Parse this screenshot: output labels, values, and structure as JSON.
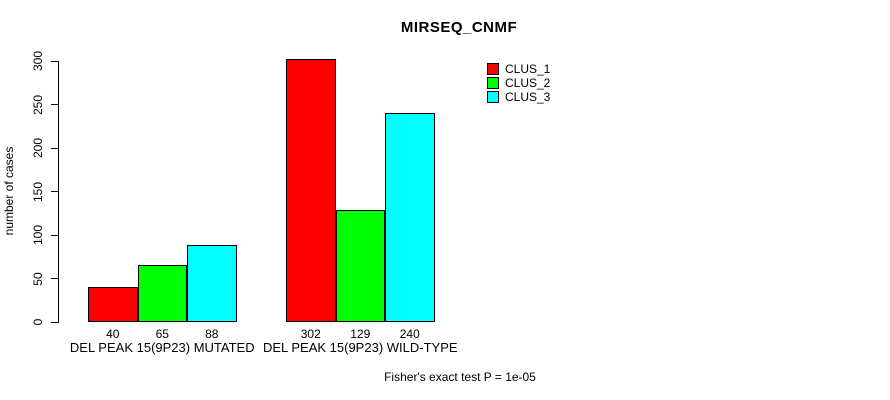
{
  "title": "MIRSEQ_CNMF",
  "footer": "Fisher's exact test P = 1e-05",
  "chart_data": {
    "type": "bar",
    "title": "MIRSEQ_CNMF",
    "xlabel": "",
    "ylabel": "number of cases",
    "ylim": [
      0,
      302
    ],
    "yticks": [
      0,
      50,
      100,
      150,
      200,
      250,
      300
    ],
    "grid": false,
    "legend_position": "top-right",
    "categories": [
      "DEL PEAK 15(9P23) MUTATED",
      "DEL PEAK 15(9P23) WILD-TYPE"
    ],
    "series": [
      {
        "name": "CLUS_1",
        "color": "#ff0000",
        "values": [
          40,
          302
        ]
      },
      {
        "name": "CLUS_2",
        "color": "#00ff00",
        "values": [
          65,
          129
        ]
      },
      {
        "name": "CLUS_3",
        "color": "#00ffff",
        "values": [
          88,
          240
        ]
      }
    ],
    "bar_border_color": "#000000",
    "show_value_labels": true,
    "annotation": "Fisher's exact test P = 1e-05"
  }
}
